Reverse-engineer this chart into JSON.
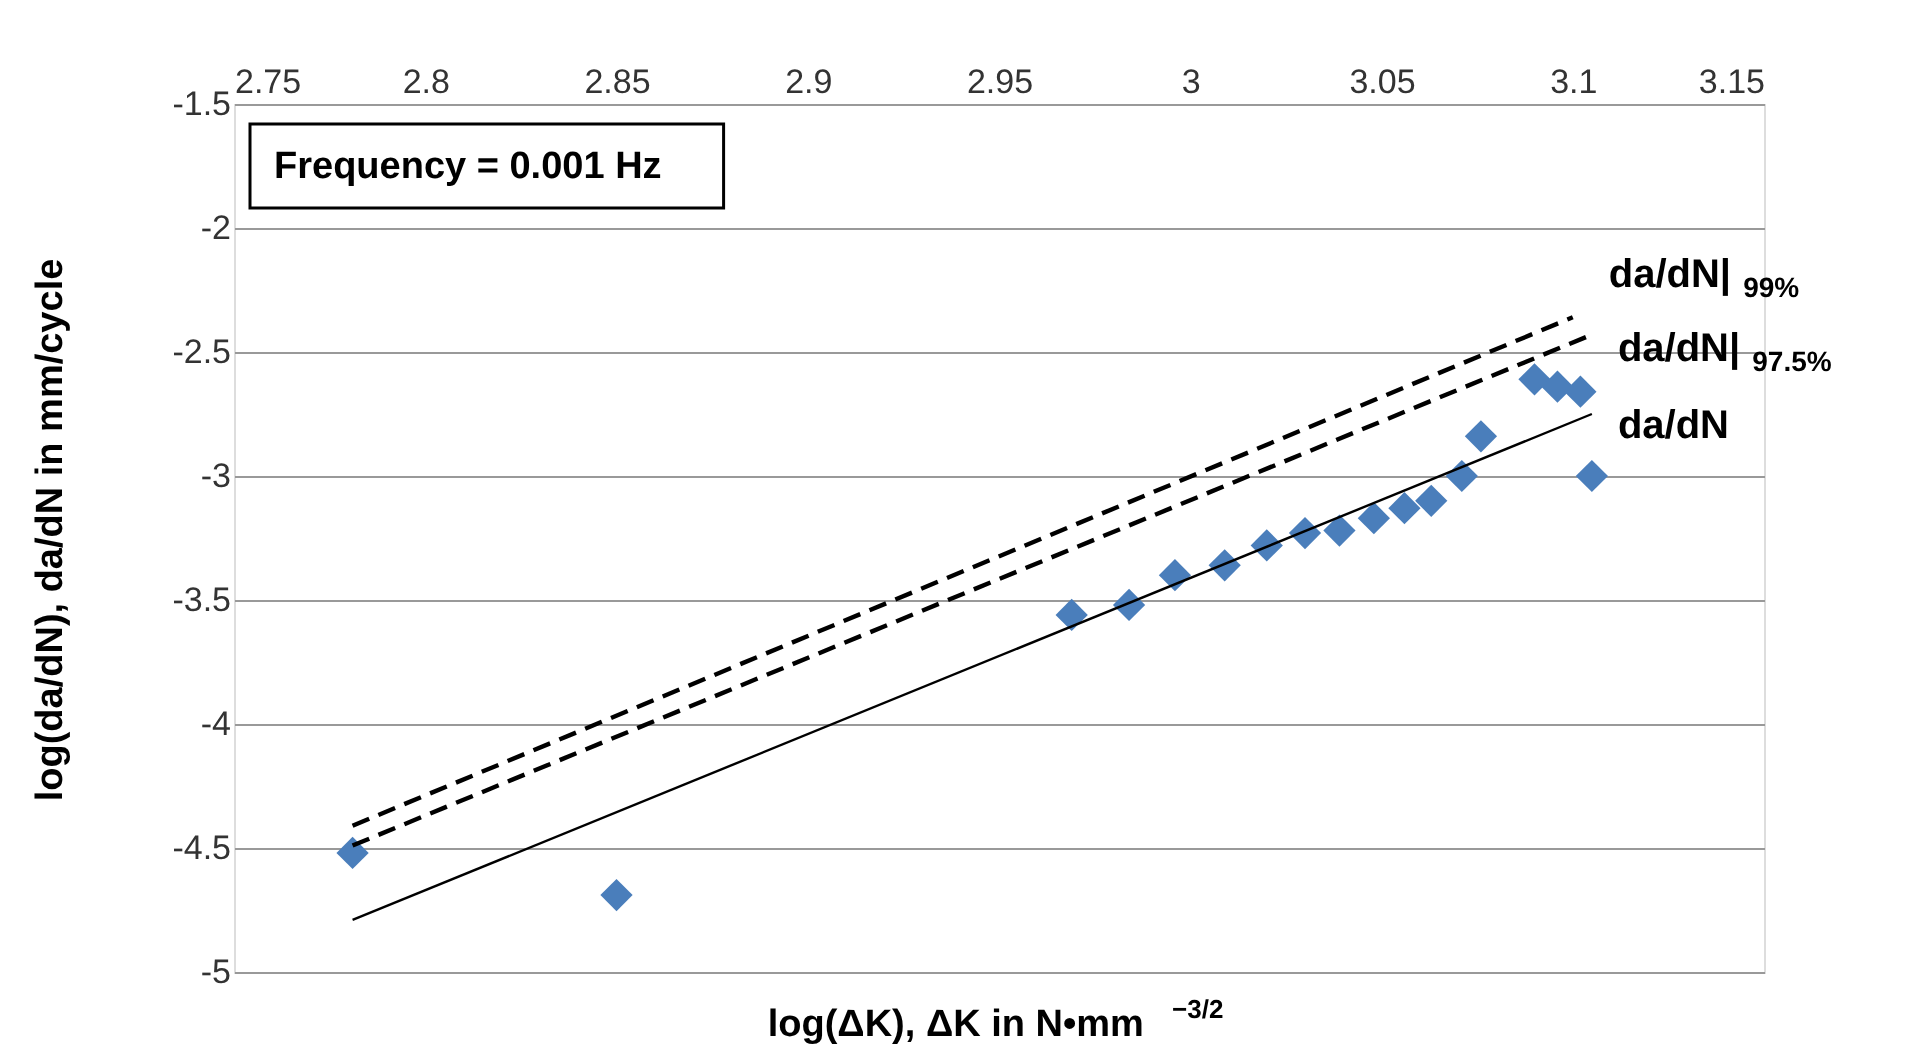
{
  "chart_data": {
    "type": "scatter",
    "xlabel": "log(ΔK), ΔK in N•mm$^{−3/2}$",
    "ylabel": "log(da/dN), da/dN in mm/cycle",
    "annotations": [
      "Frequency = 0.001 Hz"
    ],
    "xlim": [
      2.75,
      3.15
    ],
    "xticks": [
      2.75,
      2.8,
      2.85,
      2.9,
      2.95,
      3,
      3.05,
      3.1,
      3.15
    ],
    "ylim": [
      -5,
      -1.5
    ],
    "yticks": [
      -5,
      -4.5,
      -4,
      -3.5,
      -3,
      -2.5,
      -2,
      -1.5
    ],
    "grid": "y",
    "series": [
      {
        "color": "#4a7ebb",
        "marker": "diamond",
        "x": [
          2.781,
          2.85,
          2.969,
          2.984,
          2.996,
          3.009,
          3.02,
          3.03,
          3.039,
          3.048,
          3.056,
          3.063,
          3.071,
          3.076,
          3.09,
          3.096,
          3.102,
          3.105
        ],
        "values": [
          -4.52,
          -4.69,
          -3.56,
          -3.52,
          -3.4,
          -3.36,
          -3.28,
          -3.23,
          -3.22,
          -3.17,
          -3.13,
          -3.1,
          -3.0,
          -2.84,
          -2.61,
          -2.64,
          -2.66,
          -3.0
        ]
      },
      {
        "type": "line",
        "name": "da/dN|$_{99%}$",
        "color": "#000000",
        "line_style": "dashed",
        "x": [
          2.781,
          3.1
        ],
        "values": [
          -4.41,
          -2.36
        ]
      },
      {
        "type": "line",
        "name": "da/dN|$_{97.5%}$",
        "color": "#000000",
        "line_style": "dashed",
        "x": [
          2.781,
          3.105
        ],
        "values": [
          -4.49,
          -2.43
        ]
      },
      {
        "type": "line",
        "name": "da/dN",
        "color": "#000000",
        "line_style": "solid",
        "x": [
          2.781,
          3.105
        ],
        "values": [
          -4.79,
          -2.75
        ]
      }
    ]
  }
}
